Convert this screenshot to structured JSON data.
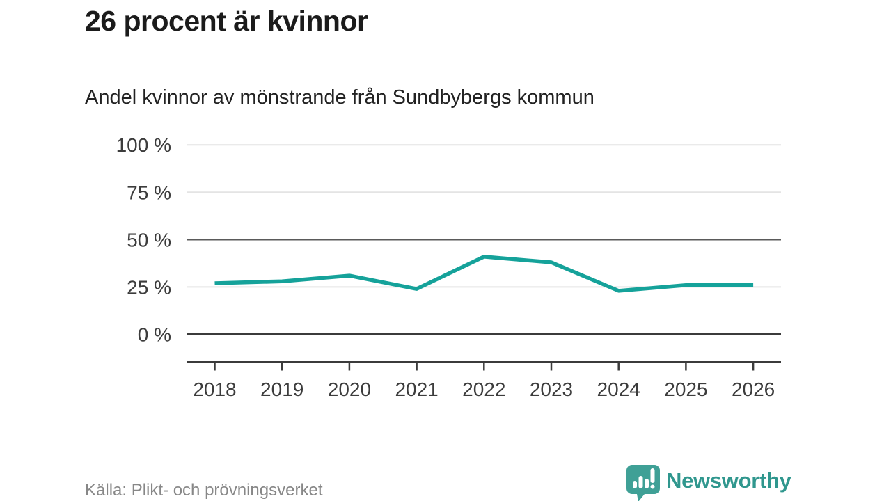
{
  "header": {
    "title": "26 procent är kvinnor",
    "subtitle": "Andel kvinnor av mönstrande från Sundbybergs kommun"
  },
  "footer": {
    "source": "Källa: Plikt- och prövningsverket",
    "brand": "Newsworthy"
  },
  "colors": {
    "accent": "#15a29a",
    "brand_icon": "#3fa096",
    "brand_text": "#30978e",
    "grid_light": "#e4e4e4",
    "grid_mid": "#5a5a5a",
    "axis_dark": "#3b3b3b",
    "axis_text": "#3c3c3c",
    "title_text": "#1b1b1b",
    "muted_text": "#878787"
  },
  "chart_data": {
    "type": "line",
    "title": "26 procent är kvinnor",
    "subtitle": "Andel kvinnor av mönstrande från Sundbybergs kommun",
    "x": [
      "2018",
      "2019",
      "2020",
      "2021",
      "2022",
      "2023",
      "2024",
      "2025",
      "2026"
    ],
    "series": [
      {
        "name": "Andel kvinnor av mönstrande",
        "color": "#15a29a",
        "values": [
          27,
          28,
          31,
          24,
          41,
          38,
          23,
          26,
          26
        ]
      }
    ],
    "xlabel": "",
    "ylabel": "",
    "ylim": [
      0,
      100
    ],
    "y_ticks": [
      0,
      25,
      50,
      75,
      100
    ],
    "y_tick_labels": [
      "0 %",
      "25 %",
      "50 %",
      "75 %",
      "100 %"
    ],
    "emphasized_gridlines": [
      0,
      50
    ],
    "grid": "horizontal",
    "legend": "none",
    "source": "Källa: Plikt- och prövningsverket"
  }
}
